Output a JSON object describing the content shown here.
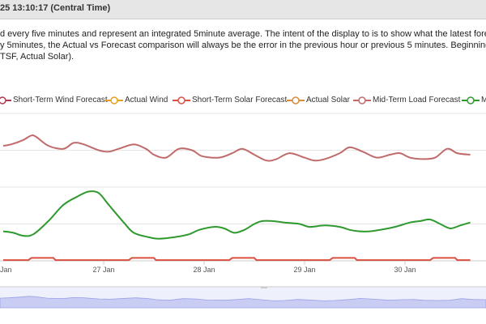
{
  "header": {
    "title": "25 13:10:17 (Central Time)"
  },
  "description": [
    "d every five minutes and represent an integrated 5minute average. The intent of the display to is to show what the latest forec",
    "y 5minutes, the Actual vs Forecast comparison will always be the error in the previous hour or previous 5 minutes.  Beginning",
    "TSF, Actual Solar)."
  ],
  "legend": [
    {
      "label": "Short-Term Wind Forecast",
      "color": "#b03a50"
    },
    {
      "label": "Actual Wind",
      "color": "#e8a020"
    },
    {
      "label": "Short-Term Solar Forecast",
      "color": "#d95040"
    },
    {
      "label": "Actual Solar",
      "color": "#d98a3a"
    },
    {
      "label": "Mid-Term Load Forecast",
      "color": "#c06a6a"
    },
    {
      "label": "M",
      "color": "#2e9a2e"
    }
  ],
  "chart_data": {
    "type": "line",
    "x_tick_labels": [
      "Jan",
      "27 Jan",
      "28 Jan",
      "29 Jan",
      "30 Jan"
    ],
    "x_tick_day_positions": [
      0,
      1,
      2,
      3,
      4
    ],
    "x_range_days": [
      0,
      4.65
    ],
    "y_range_relative": [
      0,
      1
    ],
    "series": [
      {
        "name": "Mid-Term Load Forecast",
        "color": "#c06a6a",
        "x": [
          0,
          0.08,
          0.2,
          0.28,
          0.33,
          0.45,
          0.6,
          0.7,
          0.8,
          0.95,
          1.05,
          1.15,
          1.3,
          1.42,
          1.5,
          1.62,
          1.75,
          1.88,
          1.98,
          2.15,
          2.28,
          2.38,
          2.5,
          2.62,
          2.72,
          2.85,
          3.0,
          3.1,
          3.2,
          3.35,
          3.45,
          3.58,
          3.72,
          3.85,
          3.95,
          4.05,
          4.18,
          4.3,
          4.42,
          4.52,
          4.65
        ],
        "y": [
          0.78,
          0.79,
          0.82,
          0.85,
          0.84,
          0.78,
          0.76,
          0.8,
          0.79,
          0.75,
          0.74,
          0.76,
          0.79,
          0.76,
          0.72,
          0.7,
          0.76,
          0.75,
          0.71,
          0.7,
          0.73,
          0.76,
          0.72,
          0.68,
          0.69,
          0.73,
          0.7,
          0.68,
          0.69,
          0.73,
          0.77,
          0.74,
          0.7,
          0.72,
          0.73,
          0.7,
          0.69,
          0.7,
          0.76,
          0.73,
          0.72
        ]
      },
      {
        "name": "Mid-Term Wind Forecast",
        "color": "#2e9a2e",
        "x": [
          0,
          0.1,
          0.2,
          0.3,
          0.45,
          0.6,
          0.75,
          0.85,
          0.95,
          1.05,
          1.2,
          1.3,
          1.45,
          1.55,
          1.7,
          1.85,
          1.95,
          2.1,
          2.2,
          2.3,
          2.4,
          2.5,
          2.58,
          2.68,
          2.8,
          2.95,
          3.05,
          3.2,
          3.35,
          3.45,
          3.55,
          3.65,
          3.75,
          3.9,
          4.05,
          4.15,
          4.25,
          4.35,
          4.45,
          4.55,
          4.65
        ],
        "y": [
          0.2,
          0.19,
          0.17,
          0.18,
          0.27,
          0.38,
          0.44,
          0.47,
          0.46,
          0.38,
          0.26,
          0.19,
          0.16,
          0.15,
          0.16,
          0.18,
          0.21,
          0.23,
          0.22,
          0.19,
          0.21,
          0.25,
          0.27,
          0.27,
          0.26,
          0.25,
          0.23,
          0.24,
          0.23,
          0.21,
          0.2,
          0.2,
          0.21,
          0.23,
          0.26,
          0.27,
          0.28,
          0.25,
          0.22,
          0.24,
          0.26
        ]
      },
      {
        "name": "Short-Term Solar Forecast",
        "color": "#d95040",
        "x": [
          0,
          0.25,
          0.28,
          0.5,
          0.52,
          1.25,
          1.28,
          1.5,
          1.52,
          2.25,
          2.28,
          2.5,
          2.52,
          3.25,
          3.28,
          3.5,
          3.52,
          4.25,
          4.28,
          4.5,
          4.52,
          4.65
        ],
        "y": [
          0.005,
          0.005,
          0.02,
          0.02,
          0.005,
          0.005,
          0.02,
          0.02,
          0.005,
          0.005,
          0.02,
          0.02,
          0.005,
          0.005,
          0.02,
          0.02,
          0.005,
          0.005,
          0.02,
          0.02,
          0.005,
          0.005
        ]
      }
    ]
  }
}
